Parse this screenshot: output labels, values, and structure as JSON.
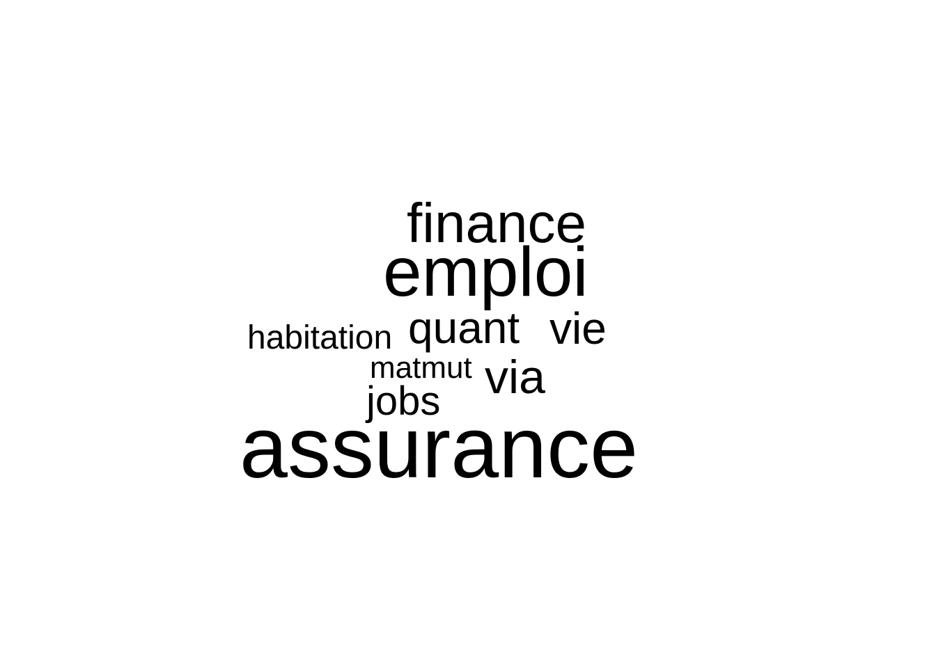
{
  "chart_data": {
    "type": "wordcloud",
    "color": "#000000",
    "words": [
      {
        "text": "assurance",
        "weight": 10
      },
      {
        "text": "emploi",
        "weight": 7
      },
      {
        "text": "finance",
        "weight": 5
      },
      {
        "text": "quant",
        "weight": 4
      },
      {
        "text": "vie",
        "weight": 4
      },
      {
        "text": "via",
        "weight": 4
      },
      {
        "text": "jobs",
        "weight": 3
      },
      {
        "text": "habitation",
        "weight": 2
      },
      {
        "text": "matmut",
        "weight": 1
      }
    ]
  }
}
